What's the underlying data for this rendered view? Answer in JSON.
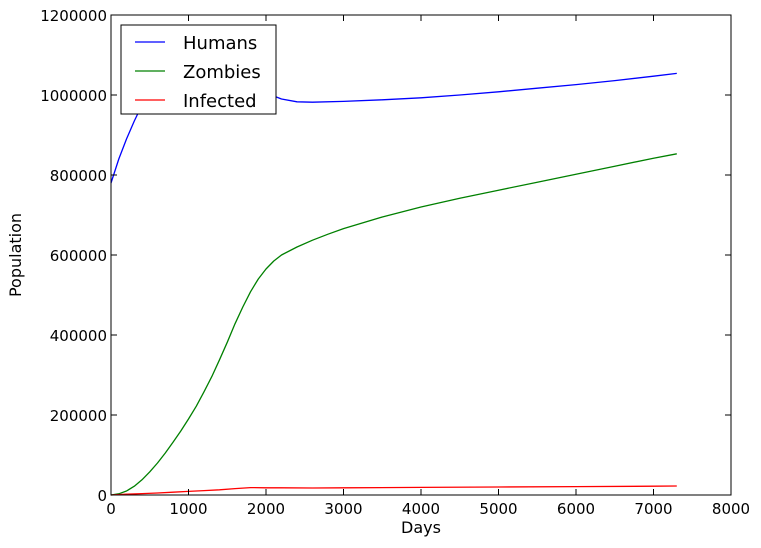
{
  "chart_data": {
    "type": "line",
    "title": "",
    "xlabel": "Days",
    "ylabel": "Population",
    "xlim": [
      0,
      8000
    ],
    "ylim": [
      0,
      1200000
    ],
    "x_ticks": [
      0,
      1000,
      2000,
      3000,
      4000,
      5000,
      6000,
      7000,
      8000
    ],
    "y_ticks": [
      0,
      200000,
      400000,
      600000,
      800000,
      1000000,
      1200000
    ],
    "x_tick_labels": [
      "0",
      "1000",
      "2000",
      "3000",
      "4000",
      "5000",
      "6000",
      "7000",
      "8000"
    ],
    "y_tick_labels": [
      "0",
      "200000",
      "400000",
      "600000",
      "800000",
      "1000000",
      "1200000"
    ],
    "grid": false,
    "legend_position": "top-left",
    "series": [
      {
        "name": "Humans",
        "color": "#0000ff",
        "points": [
          [
            0,
            780000
          ],
          [
            100,
            840000
          ],
          [
            200,
            890000
          ],
          [
            300,
            935000
          ],
          [
            400,
            975000
          ],
          [
            500,
            1005000
          ],
          [
            600,
            1025000
          ],
          [
            800,
            1045000
          ],
          [
            1000,
            1052000
          ],
          [
            1200,
            1050000
          ],
          [
            1400,
            1045000
          ],
          [
            1600,
            1035000
          ],
          [
            1800,
            1020000
          ],
          [
            2000,
            1005000
          ],
          [
            2200,
            990000
          ],
          [
            2400,
            983000
          ],
          [
            2600,
            982000
          ],
          [
            3000,
            984000
          ],
          [
            3500,
            988000
          ],
          [
            4000,
            993000
          ],
          [
            4500,
            1000000
          ],
          [
            5000,
            1008000
          ],
          [
            5500,
            1017000
          ],
          [
            6000,
            1026000
          ],
          [
            6500,
            1036000
          ],
          [
            7000,
            1047000
          ],
          [
            7300,
            1054000
          ]
        ]
      },
      {
        "name": "Zombies",
        "color": "#008000",
        "points": [
          [
            0,
            0
          ],
          [
            100,
            3000
          ],
          [
            200,
            10000
          ],
          [
            300,
            22000
          ],
          [
            400,
            38000
          ],
          [
            500,
            58000
          ],
          [
            600,
            80000
          ],
          [
            700,
            105000
          ],
          [
            800,
            132000
          ],
          [
            900,
            160000
          ],
          [
            1000,
            190000
          ],
          [
            1100,
            222000
          ],
          [
            1200,
            258000
          ],
          [
            1300,
            296000
          ],
          [
            1400,
            338000
          ],
          [
            1500,
            382000
          ],
          [
            1600,
            428000
          ],
          [
            1700,
            470000
          ],
          [
            1800,
            508000
          ],
          [
            1900,
            540000
          ],
          [
            2000,
            565000
          ],
          [
            2100,
            585000
          ],
          [
            2200,
            600000
          ],
          [
            2400,
            620000
          ],
          [
            2600,
            637000
          ],
          [
            2800,
            652000
          ],
          [
            3000,
            666000
          ],
          [
            3500,
            695000
          ],
          [
            4000,
            720000
          ],
          [
            4500,
            742000
          ],
          [
            5000,
            762000
          ],
          [
            5500,
            782000
          ],
          [
            6000,
            802000
          ],
          [
            6500,
            822000
          ],
          [
            7000,
            842000
          ],
          [
            7300,
            853000
          ]
        ]
      },
      {
        "name": "Infected",
        "color": "#ff0000",
        "points": [
          [
            0,
            0
          ],
          [
            200,
            2000
          ],
          [
            400,
            3500
          ],
          [
            600,
            5000
          ],
          [
            800,
            7000
          ],
          [
            1000,
            9000
          ],
          [
            1200,
            11000
          ],
          [
            1400,
            13000
          ],
          [
            1600,
            16000
          ],
          [
            1800,
            18500
          ],
          [
            2000,
            18000
          ],
          [
            2200,
            18000
          ],
          [
            2600,
            17500
          ],
          [
            3000,
            18000
          ],
          [
            4000,
            19000
          ],
          [
            5000,
            20000
          ],
          [
            6000,
            21000
          ],
          [
            7000,
            22000
          ],
          [
            7300,
            22500
          ]
        ]
      }
    ]
  },
  "colors": {
    "background": "#ffffff",
    "axes": "#000000"
  }
}
